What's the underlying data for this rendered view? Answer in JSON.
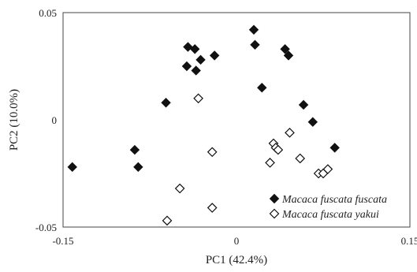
{
  "chart_data": {
    "type": "scatter",
    "title": "",
    "xlabel": "PC1 (42.4%)",
    "ylabel": "PC2 (10.0%)",
    "xlim": [
      -0.15,
      0.15
    ],
    "ylim": [
      -0.05,
      0.05
    ],
    "x_ticks": [
      {
        "value": -0.15,
        "label": "-0.15"
      },
      {
        "value": 0,
        "label": "0"
      },
      {
        "value": 0.15,
        "label": "0.15"
      }
    ],
    "y_ticks": [
      {
        "value": 0.05,
        "label": "0.05"
      },
      {
        "value": 0,
        "label": "0"
      },
      {
        "value": -0.05,
        "label": "-0.05"
      }
    ],
    "grid": false,
    "legend_position": "bottom-right",
    "series": [
      {
        "name": "Macaca fuscata fuscata",
        "marker": "filled-diamond",
        "color": "#111111",
        "points": [
          [
            -0.142,
            -0.022
          ],
          [
            -0.088,
            -0.014
          ],
          [
            -0.085,
            -0.022
          ],
          [
            -0.061,
            0.008
          ],
          [
            -0.042,
            0.034
          ],
          [
            -0.036,
            0.033
          ],
          [
            -0.043,
            0.025
          ],
          [
            -0.035,
            0.023
          ],
          [
            -0.031,
            0.028
          ],
          [
            -0.019,
            0.03
          ],
          [
            0.015,
            0.042
          ],
          [
            0.016,
            0.035
          ],
          [
            0.042,
            0.033
          ],
          [
            0.045,
            0.03
          ],
          [
            0.022,
            0.015
          ],
          [
            0.058,
            0.007
          ],
          [
            0.066,
            -0.001
          ],
          [
            0.085,
            -0.013
          ]
        ]
      },
      {
        "name": "Macaca fuscata yakui",
        "marker": "open-diamond",
        "color": "#111111",
        "points": [
          [
            -0.033,
            0.01
          ],
          [
            -0.021,
            -0.015
          ],
          [
            -0.049,
            -0.032
          ],
          [
            -0.06,
            -0.047
          ],
          [
            -0.021,
            -0.041
          ],
          [
            0.032,
            -0.011
          ],
          [
            0.034,
            -0.013
          ],
          [
            0.036,
            -0.014
          ],
          [
            0.029,
            -0.02
          ],
          [
            0.046,
            -0.006
          ],
          [
            0.055,
            -0.018
          ],
          [
            0.071,
            -0.025
          ],
          [
            0.075,
            -0.025
          ],
          [
            0.079,
            -0.023
          ]
        ]
      }
    ]
  }
}
